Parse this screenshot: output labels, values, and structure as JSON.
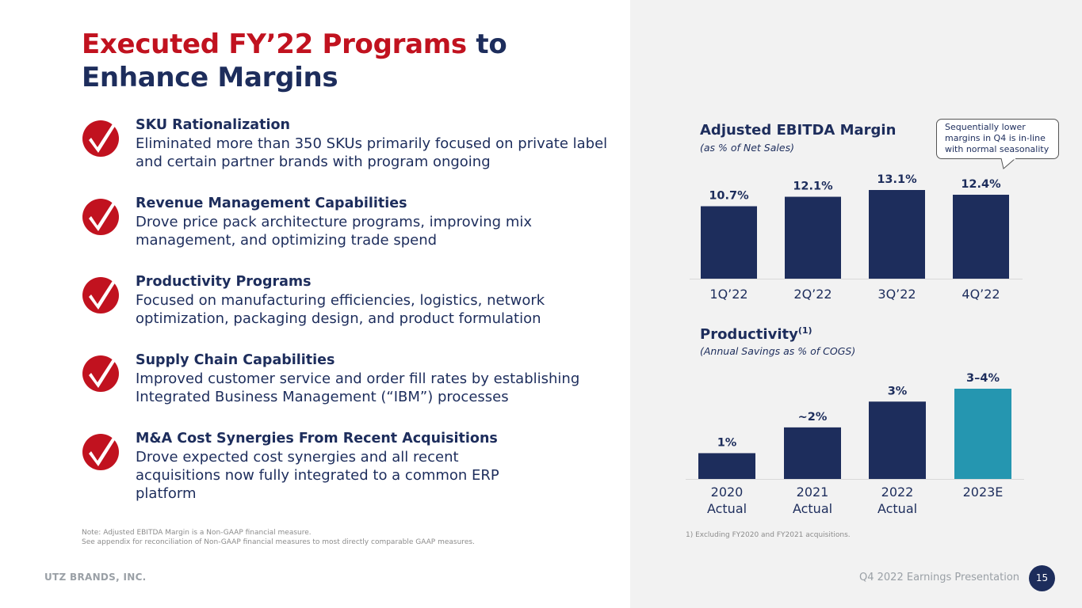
{
  "slide": {
    "title_red": "Executed FY’22 Programs",
    "title_navy_1": " to",
    "title_navy_2": "Enhance Margins",
    "items": [
      {
        "title": "SKU Rationalization",
        "desc": "Eliminated more than 350 SKUs primarily focused on private label and certain partner brands with program ongoing"
      },
      {
        "title": "Revenue Management Capabilities",
        "desc": "Drove price pack architecture programs, improving mix management, and optimizing trade spend"
      },
      {
        "title": "Productivity Programs",
        "desc": "Focused on manufacturing efficiencies, logistics, network optimization, packaging design, and product formulation"
      },
      {
        "title": "Supply Chain Capabilities",
        "desc": "Improved customer service and order fill rates by establishing Integrated Business Management (“IBM”) processes"
      },
      {
        "title": "M&A Cost Synergies From Recent Acquisitions",
        "desc": "Drove expected cost synergies and all recent acquisitions now fully integrated to a common ERP platform"
      }
    ],
    "note_1": "Note:  Adjusted EBITDA Margin is a Non-GAAP financial measure.",
    "note_2": "See appendix for reconciliation of Non-GAAP financial measures to most directly comparable GAAP measures.",
    "footnote": "1)  Excluding FY2020 and FY2021 acquisitions.",
    "footer_company": "UTZ BRANDS, INC.",
    "footer_presentation": "Q4 2022 Earnings Presentation",
    "page_number": "15",
    "callout": "Sequentially lower margins in Q4 is in-line with normal seasonality",
    "colors": {
      "red": "#c1121f",
      "navy": "#1d2d5c",
      "teal": "#2596b0",
      "panel": "#f2f2f2"
    }
  },
  "chart_data": [
    {
      "type": "bar",
      "title": "Adjusted EBITDA Margin",
      "subtitle": "(as % of Net Sales)",
      "categories": [
        "1Q’22",
        "2Q’22",
        "3Q’22",
        "4Q’22"
      ],
      "values": [
        10.7,
        12.1,
        13.1,
        12.4
      ],
      "labels": [
        "10.7%",
        "12.1%",
        "13.1%",
        "12.4%"
      ],
      "ylim": [
        0,
        13.1
      ],
      "colors": [
        "#1d2d5c",
        "#1d2d5c",
        "#1d2d5c",
        "#1d2d5c"
      ]
    },
    {
      "type": "bar",
      "title": "Productivity",
      "title_sup": "(1)",
      "subtitle": "(Annual Savings as % of COGS)",
      "categories": [
        [
          "2020",
          "Actual"
        ],
        [
          "2021",
          "Actual"
        ],
        [
          "2022",
          "Actual"
        ],
        [
          "2023E"
        ]
      ],
      "values": [
        1,
        2,
        3,
        3.5
      ],
      "labels": [
        "1%",
        "~2%",
        "3%",
        "3–4%"
      ],
      "ylim": [
        0,
        3.5
      ],
      "colors": [
        "#1d2d5c",
        "#1d2d5c",
        "#1d2d5c",
        "#2596b0"
      ]
    }
  ]
}
